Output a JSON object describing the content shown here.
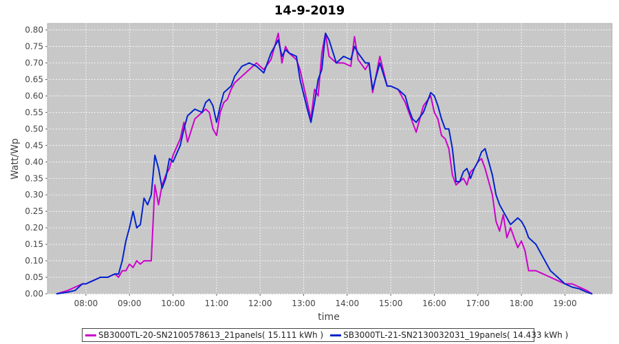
{
  "colors": {
    "series1": "#cc00cc",
    "series2": "#0022cc",
    "plot_bg": "#c8c8c8",
    "grid": "#ffffff"
  },
  "chart_data": {
    "type": "line",
    "title": "14-9-2019",
    "xlabel": "time",
    "ylabel": "Watt/Wp",
    "xlim": [
      "07:07",
      "20:05"
    ],
    "ylim": [
      0,
      0.82
    ],
    "xticks": [
      "08:00",
      "09:00",
      "10:00",
      "11:00",
      "12:00",
      "13:00",
      "14:00",
      "15:00",
      "16:00",
      "17:00",
      "18:00",
      "19:00"
    ],
    "yticks": [
      "0.00",
      "0.05",
      "0.10",
      "0.15",
      "0.20",
      "0.25",
      "0.30",
      "0.35",
      "0.40",
      "0.45",
      "0.50",
      "0.55",
      "0.60",
      "0.65",
      "0.70",
      "0.75",
      "0.80"
    ],
    "grid": true,
    "legend_position": "bottom",
    "series": [
      {
        "name": "SB3000TL-20-SN2100578613_21panels( 15.111 kWh )",
        "x": [
          "07:20",
          "07:35",
          "07:45",
          "07:55",
          "08:00",
          "08:10",
          "08:20",
          "08:30",
          "08:40",
          "08:45",
          "08:50",
          "08:55",
          "09:00",
          "09:05",
          "09:10",
          "09:15",
          "09:20",
          "09:25",
          "09:30",
          "09:35",
          "09:40",
          "09:45",
          "09:50",
          "09:55",
          "10:00",
          "10:10",
          "10:15",
          "10:20",
          "10:30",
          "10:40",
          "10:45",
          "10:50",
          "10:55",
          "11:00",
          "11:05",
          "11:10",
          "11:15",
          "11:20",
          "11:25",
          "11:35",
          "11:45",
          "11:55",
          "12:05",
          "12:15",
          "12:25",
          "12:30",
          "12:35",
          "12:40",
          "12:50",
          "12:55",
          "13:05",
          "13:10",
          "13:15",
          "13:20",
          "13:25",
          "13:30",
          "13:35",
          "13:45",
          "13:55",
          "14:05",
          "14:10",
          "14:15",
          "14:25",
          "14:30",
          "14:35",
          "14:45",
          "14:55",
          "15:00",
          "15:10",
          "15:20",
          "15:25",
          "15:30",
          "15:35",
          "15:45",
          "15:55",
          "16:00",
          "16:05",
          "16:10",
          "16:15",
          "16:20",
          "16:25",
          "16:30",
          "16:35",
          "16:40",
          "16:45",
          "16:50",
          "16:55",
          "17:00",
          "17:05",
          "17:10",
          "17:15",
          "17:20",
          "17:25",
          "17:30",
          "17:35",
          "17:40",
          "17:45",
          "17:50",
          "17:55",
          "18:00",
          "18:05",
          "18:10",
          "18:20",
          "18:30",
          "18:40",
          "18:50",
          "19:00",
          "19:10",
          "19:20",
          "19:30",
          "19:37"
        ],
        "values": [
          0.0,
          0.01,
          0.02,
          0.03,
          0.03,
          0.04,
          0.05,
          0.05,
          0.06,
          0.05,
          0.07,
          0.07,
          0.09,
          0.08,
          0.1,
          0.09,
          0.1,
          0.1,
          0.1,
          0.33,
          0.27,
          0.33,
          0.36,
          0.38,
          0.42,
          0.47,
          0.52,
          0.46,
          0.53,
          0.55,
          0.56,
          0.55,
          0.5,
          0.48,
          0.55,
          0.58,
          0.59,
          0.62,
          0.64,
          0.66,
          0.68,
          0.7,
          0.68,
          0.71,
          0.79,
          0.7,
          0.75,
          0.73,
          0.71,
          0.68,
          0.58,
          0.53,
          0.62,
          0.6,
          0.73,
          0.79,
          0.72,
          0.7,
          0.7,
          0.69,
          0.78,
          0.71,
          0.68,
          0.7,
          0.61,
          0.72,
          0.63,
          0.63,
          0.62,
          0.58,
          0.55,
          0.52,
          0.49,
          0.57,
          0.6,
          0.55,
          0.53,
          0.48,
          0.47,
          0.44,
          0.36,
          0.33,
          0.34,
          0.35,
          0.33,
          0.37,
          0.38,
          0.4,
          0.41,
          0.38,
          0.34,
          0.3,
          0.22,
          0.19,
          0.24,
          0.17,
          0.2,
          0.17,
          0.14,
          0.16,
          0.13,
          0.07,
          0.07,
          0.06,
          0.05,
          0.04,
          0.03,
          0.03,
          0.02,
          0.01,
          0.0
        ]
      },
      {
        "name": "SB3000TL-21-SN2130032031_19panels( 14.433 kWh )",
        "x": [
          "07:20",
          "07:35",
          "07:45",
          "07:55",
          "08:00",
          "08:10",
          "08:20",
          "08:30",
          "08:40",
          "08:45",
          "08:50",
          "08:55",
          "09:00",
          "09:05",
          "09:10",
          "09:15",
          "09:20",
          "09:25",
          "09:30",
          "09:35",
          "09:40",
          "09:45",
          "09:50",
          "09:55",
          "10:00",
          "10:10",
          "10:15",
          "10:20",
          "10:30",
          "10:40",
          "10:45",
          "10:50",
          "10:55",
          "11:00",
          "11:05",
          "11:10",
          "11:15",
          "11:20",
          "11:25",
          "11:35",
          "11:45",
          "11:55",
          "12:05",
          "12:15",
          "12:25",
          "12:30",
          "12:35",
          "12:40",
          "12:50",
          "12:55",
          "13:05",
          "13:10",
          "13:15",
          "13:20",
          "13:25",
          "13:30",
          "13:35",
          "13:45",
          "13:55",
          "14:05",
          "14:10",
          "14:15",
          "14:25",
          "14:30",
          "14:35",
          "14:45",
          "14:55",
          "15:00",
          "15:10",
          "15:20",
          "15:25",
          "15:30",
          "15:35",
          "15:45",
          "15:55",
          "16:00",
          "16:05",
          "16:10",
          "16:15",
          "16:20",
          "16:25",
          "16:30",
          "16:35",
          "16:40",
          "16:45",
          "16:50",
          "16:55",
          "17:00",
          "17:05",
          "17:10",
          "17:15",
          "17:20",
          "17:25",
          "17:30",
          "17:35",
          "17:40",
          "17:45",
          "17:50",
          "17:55",
          "18:00",
          "18:05",
          "18:10",
          "18:20",
          "18:30",
          "18:40",
          "18:50",
          "19:00",
          "19:10",
          "19:20",
          "19:30",
          "19:37"
        ],
        "values": [
          0.0,
          0.005,
          0.01,
          0.03,
          0.03,
          0.04,
          0.05,
          0.05,
          0.06,
          0.06,
          0.1,
          0.16,
          0.2,
          0.25,
          0.2,
          0.21,
          0.29,
          0.27,
          0.3,
          0.42,
          0.38,
          0.32,
          0.35,
          0.41,
          0.4,
          0.45,
          0.5,
          0.54,
          0.56,
          0.55,
          0.58,
          0.59,
          0.57,
          0.52,
          0.57,
          0.61,
          0.62,
          0.63,
          0.66,
          0.69,
          0.7,
          0.69,
          0.67,
          0.73,
          0.77,
          0.72,
          0.74,
          0.73,
          0.72,
          0.65,
          0.56,
          0.52,
          0.58,
          0.65,
          0.68,
          0.79,
          0.77,
          0.7,
          0.72,
          0.71,
          0.75,
          0.73,
          0.7,
          0.7,
          0.62,
          0.7,
          0.63,
          0.63,
          0.62,
          0.6,
          0.56,
          0.53,
          0.52,
          0.55,
          0.61,
          0.6,
          0.57,
          0.53,
          0.5,
          0.5,
          0.44,
          0.34,
          0.34,
          0.37,
          0.38,
          0.35,
          0.38,
          0.4,
          0.43,
          0.44,
          0.4,
          0.36,
          0.3,
          0.27,
          0.25,
          0.23,
          0.21,
          0.22,
          0.23,
          0.22,
          0.2,
          0.17,
          0.15,
          0.11,
          0.07,
          0.05,
          0.03,
          0.02,
          0.015,
          0.005,
          0.0
        ]
      }
    ]
  }
}
